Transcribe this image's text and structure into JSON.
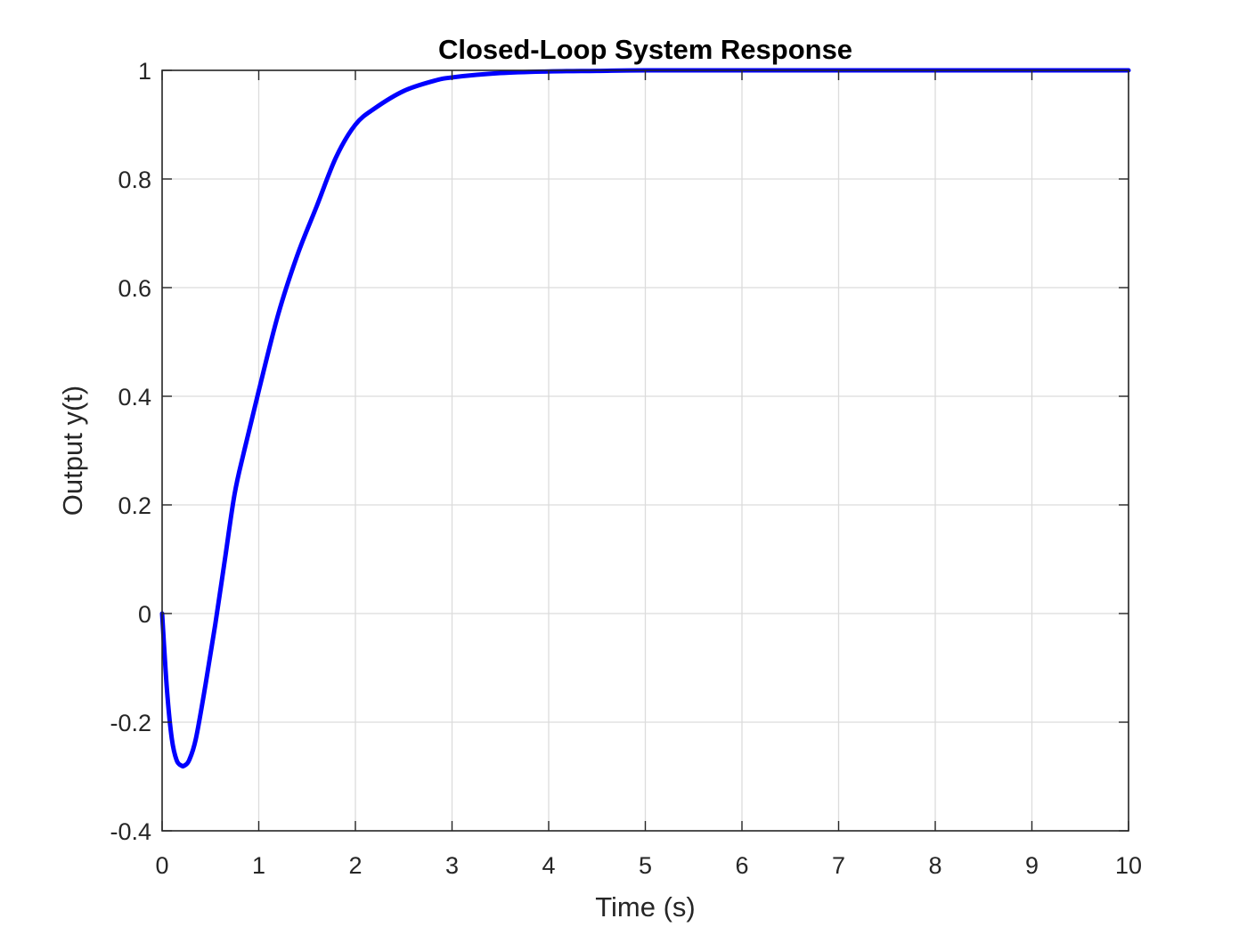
{
  "chart_data": {
    "type": "line",
    "title": "Closed-Loop System Response",
    "xlabel": "Time (s)",
    "ylabel": "Output y(t)",
    "xlim": [
      0,
      10
    ],
    "ylim": [
      -0.4,
      1
    ],
    "xticks": [
      0,
      1,
      2,
      3,
      4,
      5,
      6,
      7,
      8,
      9,
      10
    ],
    "yticks": [
      -0.4,
      -0.2,
      0,
      0.2,
      0.4,
      0.6,
      0.8,
      1
    ],
    "xtick_labels": [
      "0",
      "1",
      "2",
      "3",
      "4",
      "5",
      "6",
      "7",
      "8",
      "9",
      "10"
    ],
    "ytick_labels": [
      "-0.4",
      "-0.2",
      "0",
      "0.2",
      "0.4",
      "0.6",
      "0.8",
      "1"
    ],
    "grid": true,
    "series": [
      {
        "color": "#0000ff",
        "x": [
          0,
          0.05,
          0.1,
          0.15,
          0.2,
          0.23,
          0.28,
          0.35,
          0.45,
          0.55,
          0.65,
          0.75,
          0.85,
          1.0,
          1.2,
          1.4,
          1.6,
          1.8,
          2.0,
          2.2,
          2.5,
          2.8,
          3.0,
          3.5,
          4.0,
          4.5,
          5.0,
          6.0,
          7.0,
          8.0,
          9.0,
          10.0
        ],
        "y": [
          0,
          -0.14,
          -0.23,
          -0.27,
          -0.28,
          -0.28,
          -0.27,
          -0.23,
          -0.13,
          -0.02,
          0.1,
          0.22,
          0.3,
          0.41,
          0.55,
          0.66,
          0.75,
          0.84,
          0.9,
          0.93,
          0.962,
          0.98,
          0.987,
          0.995,
          0.998,
          0.999,
          1.0,
          1.0,
          1.0,
          1.0,
          1.0,
          1.0
        ]
      }
    ]
  }
}
